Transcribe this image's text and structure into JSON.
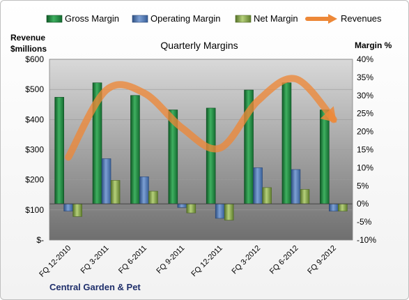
{
  "chart_data": {
    "type": "bar",
    "title": "Quarterly Margins",
    "company": "Central Garden & Pet",
    "categories": [
      "FQ 12-2010",
      "FQ 3-2011",
      "FQ 6-2011",
      "FQ 9-2011",
      "FQ 12-2011",
      "FQ 3-2012",
      "FQ 6-2012",
      "FQ 9-2012"
    ],
    "series": [
      {
        "name": "Gross Margin",
        "type": "bar",
        "axis": "right",
        "color": "#1e7b3d",
        "values": [
          29.5,
          33.5,
          30.0,
          26.0,
          26.5,
          31.5,
          33.5,
          26.0
        ]
      },
      {
        "name": "Operating Margin",
        "type": "bar",
        "axis": "right",
        "color": "#4a6fa5",
        "values": [
          -2.0,
          12.5,
          7.5,
          -1.0,
          -4.0,
          10.0,
          9.5,
          -2.0
        ]
      },
      {
        "name": "Net Margin",
        "type": "bar",
        "axis": "right",
        "color": "#7a9a3c",
        "values": [
          -3.5,
          6.5,
          3.5,
          -2.5,
          -4.5,
          4.5,
          4.0,
          -2.0
        ]
      },
      {
        "name": "Revenues",
        "type": "line",
        "axis": "left",
        "color": "#ed8838",
        "values": [
          275,
          498,
          488,
          372,
          305,
          462,
          535,
          400
        ]
      }
    ],
    "y_left": {
      "label_line1": "Revenue",
      "label_line2": "$millions",
      "min": 0,
      "max": 600,
      "step": 100,
      "ticks": [
        "$-",
        "$100",
        "$200",
        "$300",
        "$400",
        "$500",
        "$600"
      ]
    },
    "y_right": {
      "label": "Margin %",
      "min": -10,
      "max": 40,
      "step": 5,
      "ticks": [
        "-10%",
        "-5%",
        "0%",
        "5%",
        "10%",
        "15%",
        "20%",
        "25%",
        "30%",
        "35%",
        "40%"
      ]
    },
    "legend_position": "top",
    "grid": true
  }
}
